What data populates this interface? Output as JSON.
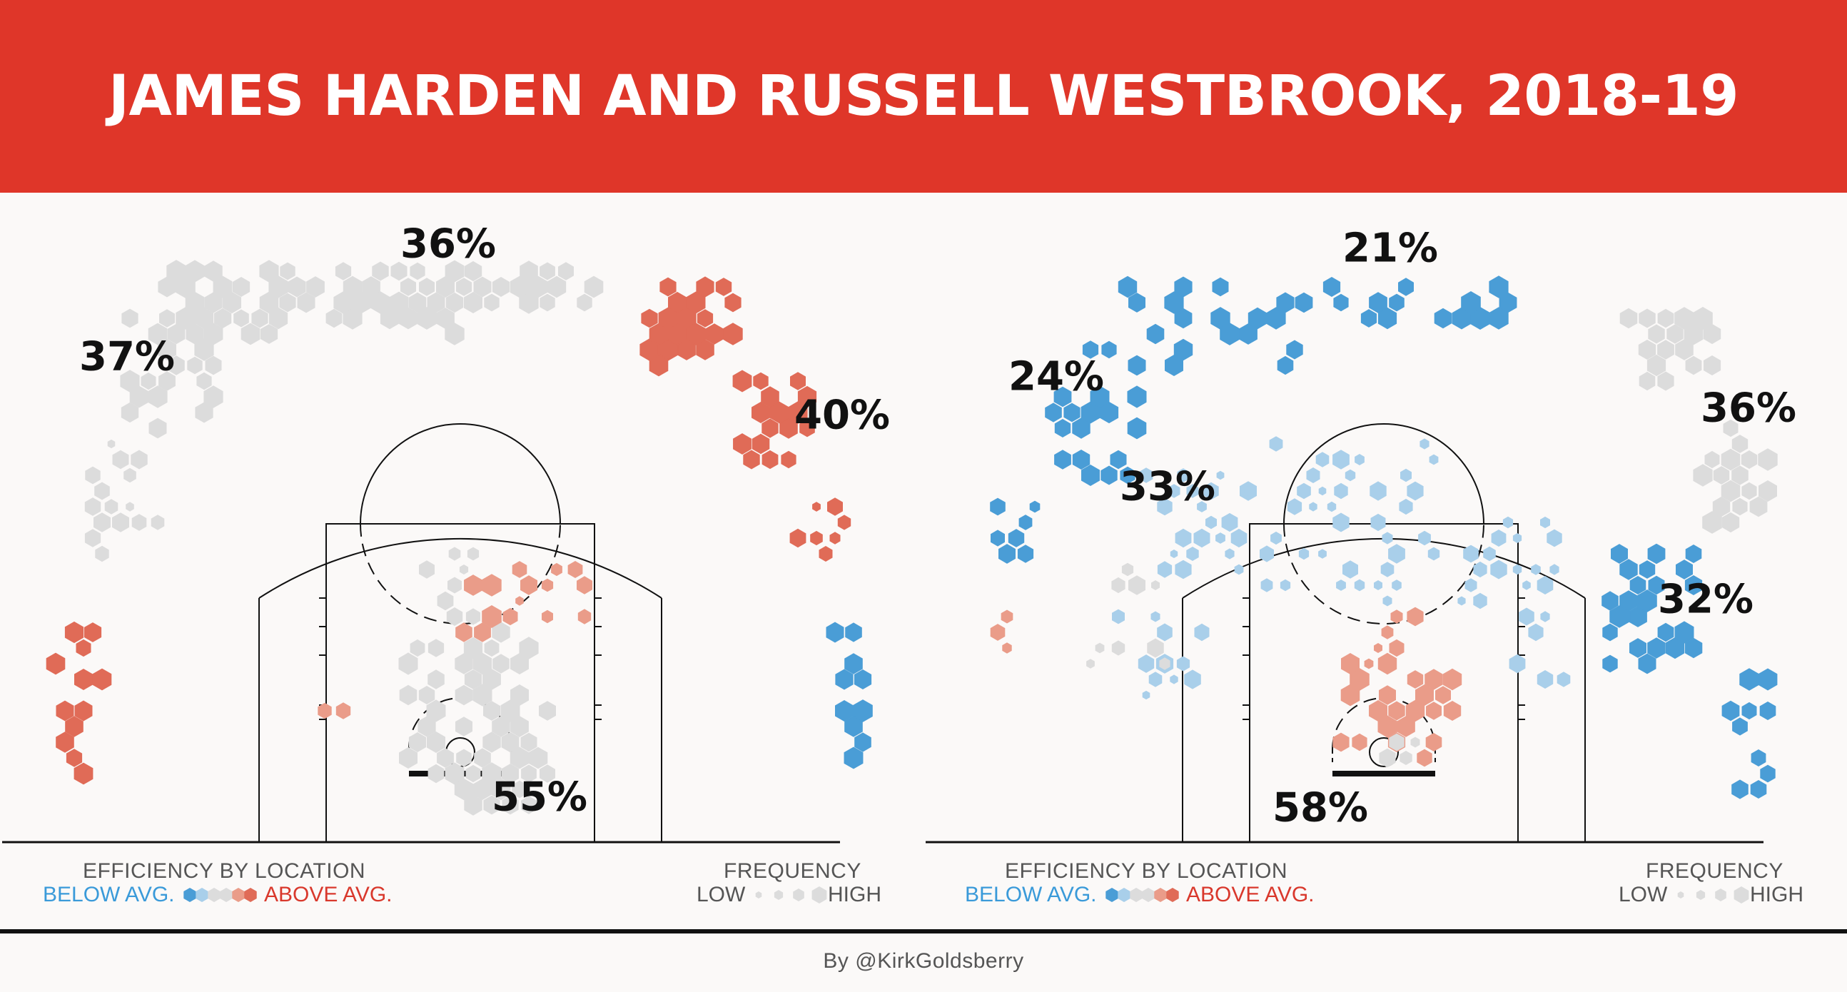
{
  "title": "JAMES HARDEN AND RUSSELL WESTBROOK, 2018-19",
  "legend": {
    "efficiency_title": "EFFICIENCY BY LOCATION",
    "below": "BELOW AVG.",
    "above": "ABOVE AVG.",
    "frequency_title": "FREQUENCY",
    "low": "LOW",
    "high": "HIGH"
  },
  "colors": {
    "banner": "#df3629",
    "above_strong": "#e06b57",
    "above_light": "#ea9c89",
    "average": "#dcdcdc",
    "below_light": "#a9cfea",
    "below_strong": "#4a9dd6"
  },
  "credit": "By @KirkGoldsberry",
  "chart_data": [
    {
      "type": "shot-chart",
      "player": "James Harden",
      "zone_labels": [
        {
          "zone": "left-wing-3",
          "text": "37%"
        },
        {
          "zone": "top-3",
          "text": "36%"
        },
        {
          "zone": "right-wing-3",
          "text": "40%"
        },
        {
          "zone": "restricted-area",
          "text": "55%"
        }
      ],
      "regions": [
        {
          "zone": "left-corner-3",
          "efficiency": "above"
        },
        {
          "zone": "left-wing-3",
          "efficiency": "average"
        },
        {
          "zone": "top-3",
          "efficiency": "average"
        },
        {
          "zone": "right-wing-3",
          "efficiency": "above"
        },
        {
          "zone": "right-corner-3",
          "efficiency": "below"
        },
        {
          "zone": "paint",
          "efficiency": "average"
        }
      ]
    },
    {
      "type": "shot-chart",
      "player": "Russell Westbrook",
      "zone_labels": [
        {
          "zone": "top-3",
          "text": "21%"
        },
        {
          "zone": "left-wing-3",
          "text": "24%"
        },
        {
          "zone": "right-wing-3",
          "text": "36%"
        },
        {
          "zone": "left-midrange",
          "text": "33%"
        },
        {
          "zone": "right-midrange",
          "text": "32%"
        },
        {
          "zone": "restricted-area",
          "text": "58%"
        }
      ],
      "regions": [
        {
          "zone": "left-corner-3",
          "efficiency": "above"
        },
        {
          "zone": "left-wing-3",
          "efficiency": "below"
        },
        {
          "zone": "top-3",
          "efficiency": "below"
        },
        {
          "zone": "right-wing-3",
          "efficiency": "average"
        },
        {
          "zone": "right-corner-3",
          "efficiency": "below"
        },
        {
          "zone": "left-midrange",
          "efficiency": "below"
        },
        {
          "zone": "right-midrange",
          "efficiency": "below"
        },
        {
          "zone": "restricted-area",
          "efficiency": "above"
        }
      ]
    }
  ]
}
